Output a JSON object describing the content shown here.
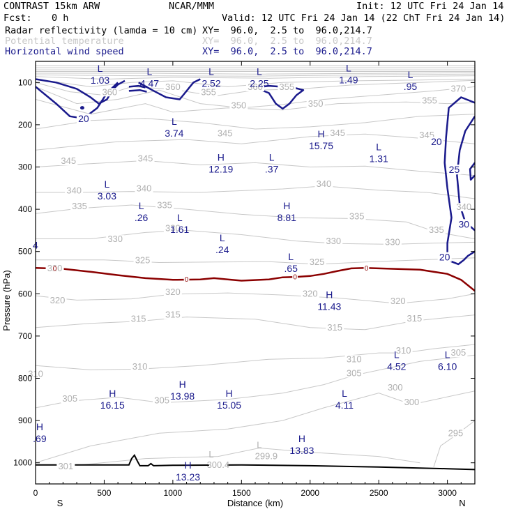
{
  "header": {
    "model": "CONTRAST 15km ARW",
    "org": "NCAR/MMM",
    "init": "Init: 12 UTC Fri 24 Jan 14",
    "fcst_label": "Fcst:",
    "fcst_value": "0 h",
    "valid": "Valid: 12 UTC Fri 24 Jan 14 (22 ChT Fri 24 Jan 14)"
  },
  "legend": [
    {
      "name": "Radar reflectivity (lamda = 10 cm)",
      "xy": "XY=  96.0,  2.5 to  96.0,214.7",
      "color": "#000000"
    },
    {
      "name": "Potential temperature",
      "xy": "XY=  96.0,  2.5 to  96.0,214.7",
      "color": "#c8c8c8"
    },
    {
      "name": "Horizontal wind speed",
      "xy": "XY=  96.0,  2.5 to  96.0,214.7",
      "color": "#1a1a8c"
    }
  ],
  "chart_data": {
    "type": "contour-cross-section",
    "xlabel": "Distance (km)",
    "ylabel": "Pressure (hPa)",
    "xlim": [
      0,
      3200
    ],
    "ylim": [
      1050,
      50
    ],
    "xticks": [
      0,
      500,
      1000,
      1500,
      2000,
      2500,
      3000
    ],
    "yticks": [
      100,
      200,
      300,
      400,
      500,
      600,
      700,
      800,
      900,
      1000
    ],
    "x_end_labels": {
      "left": "S",
      "right": "N"
    },
    "theta_labels": [
      {
        "x": 540,
        "p": 128,
        "t": "360"
      },
      {
        "x": 1000,
        "p": 116,
        "t": "360"
      },
      {
        "x": 1260,
        "p": 128,
        "t": "355"
      },
      {
        "x": 1600,
        "p": 116,
        "t": "360"
      },
      {
        "x": 1830,
        "p": 116,
        "t": "355"
      },
      {
        "x": 1480,
        "p": 160,
        "t": "350"
      },
      {
        "x": 2040,
        "p": 156,
        "t": "350"
      },
      {
        "x": 2870,
        "p": 148,
        "t": "355"
      },
      {
        "x": 3080,
        "p": 120,
        "t": "370"
      },
      {
        "x": 2850,
        "p": 230,
        "t": "345"
      },
      {
        "x": 1380,
        "p": 226,
        "t": "345"
      },
      {
        "x": 2200,
        "p": 225,
        "t": "345"
      },
      {
        "x": 240,
        "p": 291,
        "t": "345"
      },
      {
        "x": 800,
        "p": 285,
        "t": "345"
      },
      {
        "x": 2100,
        "p": 345,
        "t": "340"
      },
      {
        "x": 280,
        "p": 361,
        "t": "340"
      },
      {
        "x": 790,
        "p": 356,
        "t": "340"
      },
      {
        "x": 320,
        "p": 398,
        "t": "335"
      },
      {
        "x": 940,
        "p": 396,
        "t": "335"
      },
      {
        "x": 2340,
        "p": 422,
        "t": "335"
      },
      {
        "x": 2920,
        "p": 454,
        "t": "335"
      },
      {
        "x": 3120,
        "p": 400,
        "t": "340"
      },
      {
        "x": 1000,
        "p": 450,
        "t": "330"
      },
      {
        "x": 580,
        "p": 476,
        "t": "330"
      },
      {
        "x": 2170,
        "p": 481,
        "t": "330"
      },
      {
        "x": 2600,
        "p": 483,
        "t": "330"
      },
      {
        "x": 780,
        "p": 526,
        "t": "325"
      },
      {
        "x": 2050,
        "p": 530,
        "t": "325"
      },
      {
        "x": 140,
        "p": 545,
        "t": "320"
      },
      {
        "x": 1000,
        "p": 601,
        "t": "320"
      },
      {
        "x": 2000,
        "p": 605,
        "t": "320"
      },
      {
        "x": 2640,
        "p": 623,
        "t": "320"
      },
      {
        "x": 160,
        "p": 621,
        "t": "320"
      },
      {
        "x": 750,
        "p": 665,
        "t": "315"
      },
      {
        "x": 1000,
        "p": 655,
        "t": "315"
      },
      {
        "x": 2180,
        "p": 685,
        "t": "315"
      },
      {
        "x": 2760,
        "p": 664,
        "t": "315"
      },
      {
        "x": 2680,
        "p": 740,
        "t": "310"
      },
      {
        "x": 2320,
        "p": 760,
        "t": "310"
      },
      {
        "x": 0,
        "p": 795,
        "t": "310"
      },
      {
        "x": 760,
        "p": 778,
        "t": "310"
      },
      {
        "x": 3080,
        "p": 745,
        "t": "305"
      },
      {
        "x": 2320,
        "p": 793,
        "t": "305"
      },
      {
        "x": 250,
        "p": 854,
        "t": "305"
      },
      {
        "x": 920,
        "p": 858,
        "t": "305"
      },
      {
        "x": 2620,
        "p": 827,
        "t": "300"
      },
      {
        "x": 2740,
        "p": 862,
        "t": "300"
      },
      {
        "x": 3060,
        "p": 935,
        "t": "295"
      },
      {
        "x": 220,
        "p": 1014,
        "t": "301"
      },
      {
        "x": 1330,
        "p": 1010,
        "t": "300.4"
      }
    ],
    "theta_extrema": [
      {
        "x": 1630,
        "p": 965,
        "k": "L",
        "v": "299.9"
      },
      {
        "x": 1280,
        "p": 987,
        "k": "L",
        "v": ""
      }
    ],
    "wind_labels": [
      {
        "x": 350,
        "p": 190,
        "t": "20"
      },
      {
        "x": 2920,
        "p": 245,
        "t": "20"
      },
      {
        "x": 3050,
        "p": 311,
        "t": "25"
      },
      {
        "x": 3120,
        "p": 440,
        "t": "30"
      },
      {
        "x": 2980,
        "p": 518,
        "t": "20"
      }
    ],
    "wind_extrema": [
      {
        "x": 470,
        "p": 75,
        "k": "L",
        "v": "1.03"
      },
      {
        "x": 830,
        "p": 82,
        "k": "L",
        "v": "4.47"
      },
      {
        "x": 1280,
        "p": 82,
        "k": "L",
        "v": "2.52"
      },
      {
        "x": 1630,
        "p": 82,
        "k": "L",
        "v": "2.25"
      },
      {
        "x": 2280,
        "p": 74,
        "k": "L",
        "v": "1.49"
      },
      {
        "x": 2730,
        "p": 90,
        "k": "L",
        "v": ".95"
      },
      {
        "x": 1010,
        "p": 200,
        "k": "L",
        "v": "3.74"
      },
      {
        "x": 2080,
        "p": 230,
        "k": "H",
        "v": "15.75"
      },
      {
        "x": 2500,
        "p": 260,
        "k": "L",
        "v": "1.31"
      },
      {
        "x": 1350,
        "p": 285,
        "k": "H",
        "v": "12.19"
      },
      {
        "x": 1720,
        "p": 285,
        "k": "L",
        "v": ".37"
      },
      {
        "x": 520,
        "p": 349,
        "k": "L",
        "v": "3.03"
      },
      {
        "x": 770,
        "p": 400,
        "k": "L",
        "v": ".26"
      },
      {
        "x": 1050,
        "p": 428,
        "k": "L",
        "v": "1.61"
      },
      {
        "x": 1830,
        "p": 400,
        "k": "H",
        "v": "8.81"
      },
      {
        "x": 1360,
        "p": 476,
        "k": "L",
        "v": ".24"
      },
      {
        "x": 1860,
        "p": 520,
        "k": "L",
        "v": ".65"
      },
      {
        "x": 2140,
        "p": 610,
        "k": "H",
        "v": "11.43"
      },
      {
        "x": 2630,
        "p": 752,
        "k": "L",
        "v": "4.52"
      },
      {
        "x": 3000,
        "p": 752,
        "k": "L",
        "v": "6.10"
      },
      {
        "x": 1070,
        "p": 822,
        "k": "H",
        "v": "13.98"
      },
      {
        "x": 560,
        "p": 844,
        "k": "H",
        "v": "16.15"
      },
      {
        "x": 1410,
        "p": 844,
        "k": "H",
        "v": "15.05"
      },
      {
        "x": 2250,
        "p": 844,
        "k": "L",
        "v": "4.11"
      },
      {
        "x": 1940,
        "p": 951,
        "k": "H",
        "v": "13.83"
      },
      {
        "x": 30,
        "p": 923,
        "k": "H",
        "v": ".69"
      },
      {
        "x": 1110,
        "p": 1014,
        "k": "H",
        "v": "13.23"
      }
    ],
    "wind_edge_value": {
      "x": 20,
      "p": 485,
      "t": "4"
    },
    "reflectivity_zero_line": [
      [
        0,
        539
      ],
      [
        200,
        541
      ],
      [
        400,
        548
      ],
      [
        600,
        556
      ],
      [
        800,
        563
      ],
      [
        1000,
        567
      ],
      [
        1200,
        566
      ],
      [
        1300,
        563
      ],
      [
        1400,
        566
      ],
      [
        1500,
        569
      ],
      [
        1700,
        566
      ],
      [
        1800,
        561
      ],
      [
        1900,
        560
      ],
      [
        2000,
        558
      ],
      [
        2100,
        553
      ],
      [
        2200,
        546
      ],
      [
        2300,
        540
      ],
      [
        2400,
        539
      ],
      [
        2600,
        541
      ],
      [
        2800,
        543
      ],
      [
        3000,
        553
      ],
      [
        3100,
        567
      ],
      [
        3200,
        593
      ]
    ],
    "reflectivity_zero_markers": [
      {
        "x": 140,
        "p": 540,
        "t": "0"
      },
      {
        "x": 1100,
        "p": 566,
        "t": "0"
      },
      {
        "x": 1890,
        "p": 560,
        "t": "0"
      },
      {
        "x": 2410,
        "p": 539,
        "t": "0"
      }
    ],
    "terrain": [
      [
        0,
        1005
      ],
      [
        600,
        1005
      ],
      [
        680,
        1005
      ],
      [
        700,
        990
      ],
      [
        720,
        982
      ],
      [
        740,
        995
      ],
      [
        760,
        1007
      ],
      [
        820,
        1007
      ],
      [
        840,
        1002
      ],
      [
        860,
        1007
      ],
      [
        1000,
        1006
      ],
      [
        1500,
        1005
      ],
      [
        2000,
        1007
      ],
      [
        2500,
        1010
      ],
      [
        3000,
        1014
      ],
      [
        3200,
        1016
      ]
    ]
  }
}
